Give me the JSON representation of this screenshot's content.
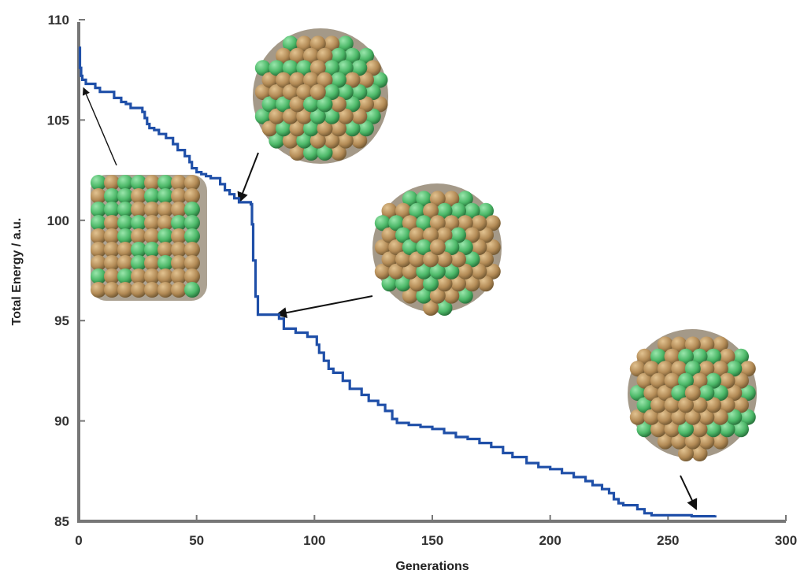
{
  "chart_data": {
    "type": "line",
    "title": "",
    "xlabel": "Generations",
    "ylabel": "Total Energy / a.u.",
    "xlim": [
      0,
      300
    ],
    "ylim": [
      85,
      110
    ],
    "xticks": [
      0,
      50,
      100,
      150,
      200,
      250,
      300
    ],
    "yticks": [
      85,
      90,
      95,
      100,
      105,
      110
    ],
    "grid": false,
    "series": [
      {
        "color": "#1f4fa8",
        "x": [
          0,
          0.5,
          1,
          1.5,
          3,
          7,
          9,
          15,
          18,
          20,
          22,
          25,
          27,
          28,
          29,
          30,
          32,
          34,
          37,
          40,
          42,
          45,
          47,
          48,
          50,
          52,
          54,
          56,
          60,
          62,
          64,
          66,
          68,
          69,
          73,
          73.5,
          74,
          75,
          76,
          80,
          83,
          85,
          87,
          92,
          97,
          101,
          102,
          104,
          106,
          108,
          112,
          115,
          120,
          123,
          127,
          130,
          133,
          135,
          138,
          140,
          145,
          150,
          155,
          160,
          165,
          170,
          175,
          180,
          184,
          190,
          195,
          200,
          205,
          210,
          215,
          218,
          222,
          225,
          227,
          229,
          231,
          237,
          240,
          243,
          250,
          255,
          260,
          265,
          270
        ],
        "y": [
          108.6,
          107.6,
          107.2,
          107.0,
          106.8,
          106.6,
          106.4,
          106.1,
          105.9,
          105.8,
          105.6,
          105.6,
          105.4,
          105.1,
          104.8,
          104.6,
          104.5,
          104.3,
          104.1,
          103.8,
          103.5,
          103.2,
          102.9,
          102.6,
          102.4,
          102.3,
          102.2,
          102.1,
          101.8,
          101.5,
          101.3,
          101.1,
          100.9,
          100.9,
          100.8,
          99.8,
          98.0,
          96.2,
          95.3,
          95.3,
          95.3,
          95.1,
          94.6,
          94.4,
          94.2,
          93.8,
          93.4,
          93.0,
          92.6,
          92.4,
          92.0,
          91.6,
          91.3,
          91.0,
          90.8,
          90.5,
          90.1,
          89.9,
          89.9,
          89.8,
          89.7,
          89.6,
          89.4,
          89.2,
          89.1,
          88.9,
          88.7,
          88.4,
          88.2,
          87.9,
          87.7,
          87.6,
          87.4,
          87.2,
          87.0,
          86.8,
          86.6,
          86.4,
          86.1,
          85.9,
          85.8,
          85.6,
          85.4,
          85.3,
          85.3,
          85.3,
          85.25,
          85.25,
          85.3
        ]
      }
    ],
    "annotations": [
      {
        "target_x": 2,
        "target_y": 106.6
      },
      {
        "target_x": 68,
        "target_y": 100.9
      },
      {
        "target_x": 84,
        "target_y": 95.3
      },
      {
        "target_x": 262,
        "target_y": 85.6
      }
    ]
  }
}
